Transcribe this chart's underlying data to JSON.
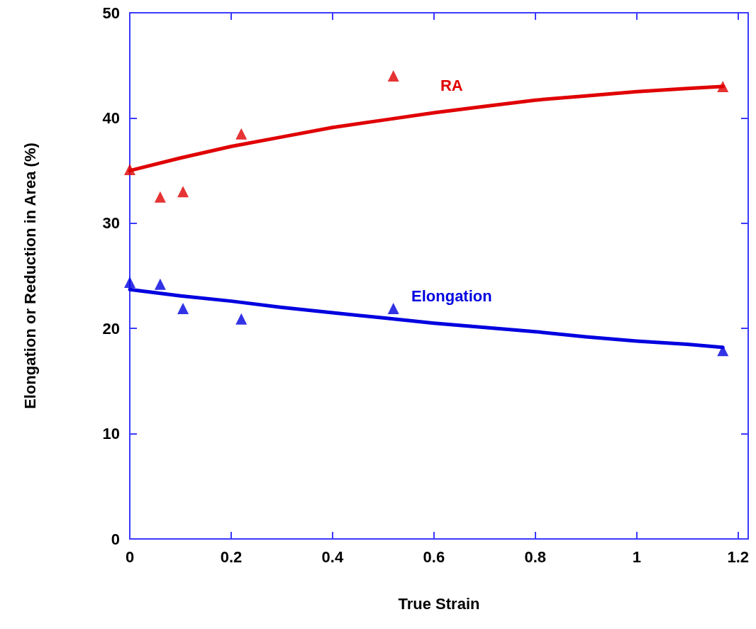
{
  "chart_data": {
    "type": "scatter",
    "xlabel": "True Strain",
    "ylabel": "Elongation or Reduction in Area (%)",
    "xlim": [
      0,
      1.22
    ],
    "xticks": [
      0,
      0.2,
      0.4,
      0.6,
      0.8,
      1,
      1.2
    ],
    "ylim": [
      0,
      50
    ],
    "yticks": [
      0,
      10,
      20,
      30,
      40,
      50
    ],
    "grid": false,
    "legend": false,
    "series": [
      {
        "marker": "triangle",
        "color": "#e00000",
        "x": [
          0,
          0.06,
          0.105,
          0.22,
          0.52,
          1.17
        ],
        "values": [
          35.1,
          32.5,
          33.0,
          38.5,
          44.0,
          43.0
        ]
      },
      {
        "marker": "triangle",
        "color": "#0000e0",
        "x": [
          0,
          0.06,
          0.105,
          0.22,
          0.52,
          1.17
        ],
        "values": [
          24.4,
          24.2,
          21.9,
          20.9,
          21.9,
          17.9
        ]
      },
      {
        "type": "line",
        "name": "RA",
        "marker": "none",
        "color": "#e00000",
        "x": [
          0,
          0.1,
          0.2,
          0.3,
          0.4,
          0.5,
          0.6,
          0.7,
          0.8,
          0.9,
          1.0,
          1.1,
          1.17
        ],
        "values": [
          35.0,
          36.2,
          37.3,
          38.2,
          39.1,
          39.8,
          40.5,
          41.1,
          41.7,
          42.1,
          42.5,
          42.8,
          43.0
        ]
      },
      {
        "type": "line",
        "name": "Elongation",
        "marker": "none",
        "color": "#0000e0",
        "x": [
          0,
          0.1,
          0.2,
          0.3,
          0.4,
          0.5,
          0.6,
          0.7,
          0.8,
          0.9,
          1.0,
          1.1,
          1.17
        ],
        "values": [
          23.7,
          23.1,
          22.6,
          22.0,
          21.5,
          21.0,
          20.5,
          20.1,
          19.7,
          19.2,
          18.8,
          18.5,
          18.2
        ]
      }
    ]
  }
}
